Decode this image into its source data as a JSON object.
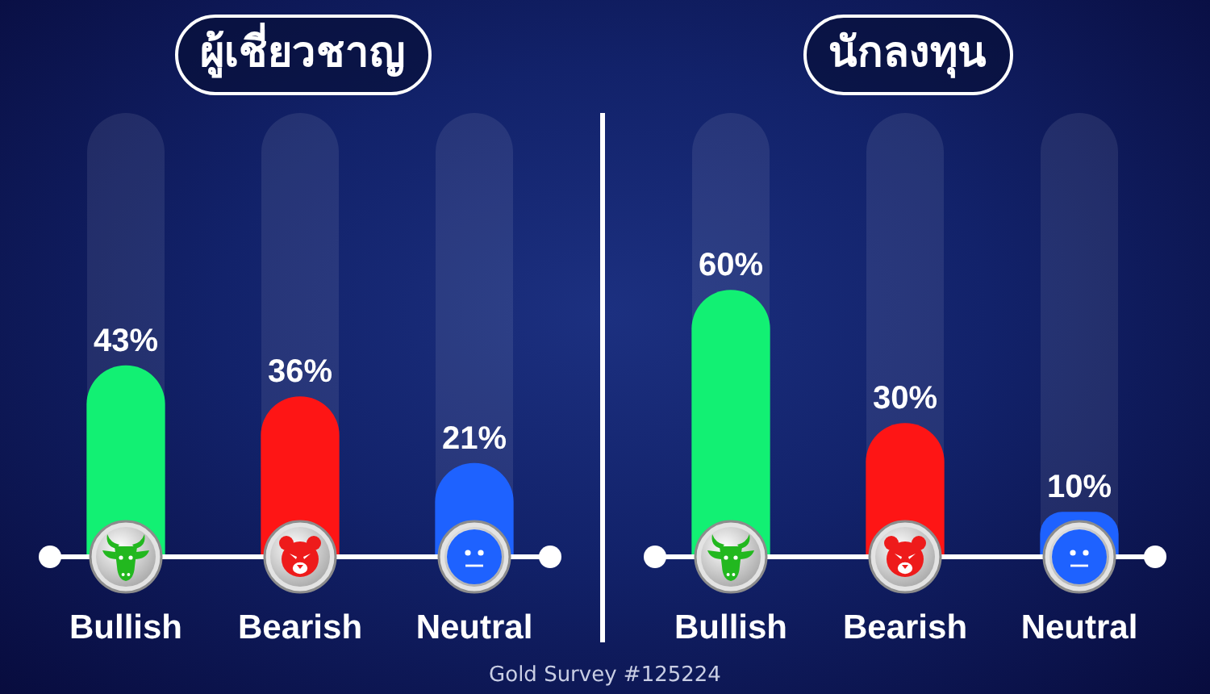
{
  "chart_data": [
    {
      "type": "bar",
      "title": "ผู้เชี่ยวชาญ",
      "categories": [
        "Bullish",
        "Bearish",
        "Neutral"
      ],
      "values": [
        43,
        36,
        21
      ],
      "colors": [
        "#12f073",
        "#fe1515",
        "#1e62ff"
      ],
      "value_labels": [
        "43%",
        "36%",
        "21%"
      ],
      "ylim": [
        0,
        100
      ],
      "tick_labels": "x",
      "annotations": [
        "Gold Survey #125224"
      ]
    },
    {
      "type": "bar",
      "title": "นักลงทุน",
      "categories": [
        "Bullish",
        "Bearish",
        "Neutral"
      ],
      "values": [
        60,
        30,
        10
      ],
      "colors": [
        "#12f073",
        "#fe1515",
        "#1e62ff"
      ],
      "value_labels": [
        "60%",
        "30%",
        "10%"
      ],
      "ylim": [
        0,
        100
      ],
      "tick_labels": "x"
    }
  ]
}
